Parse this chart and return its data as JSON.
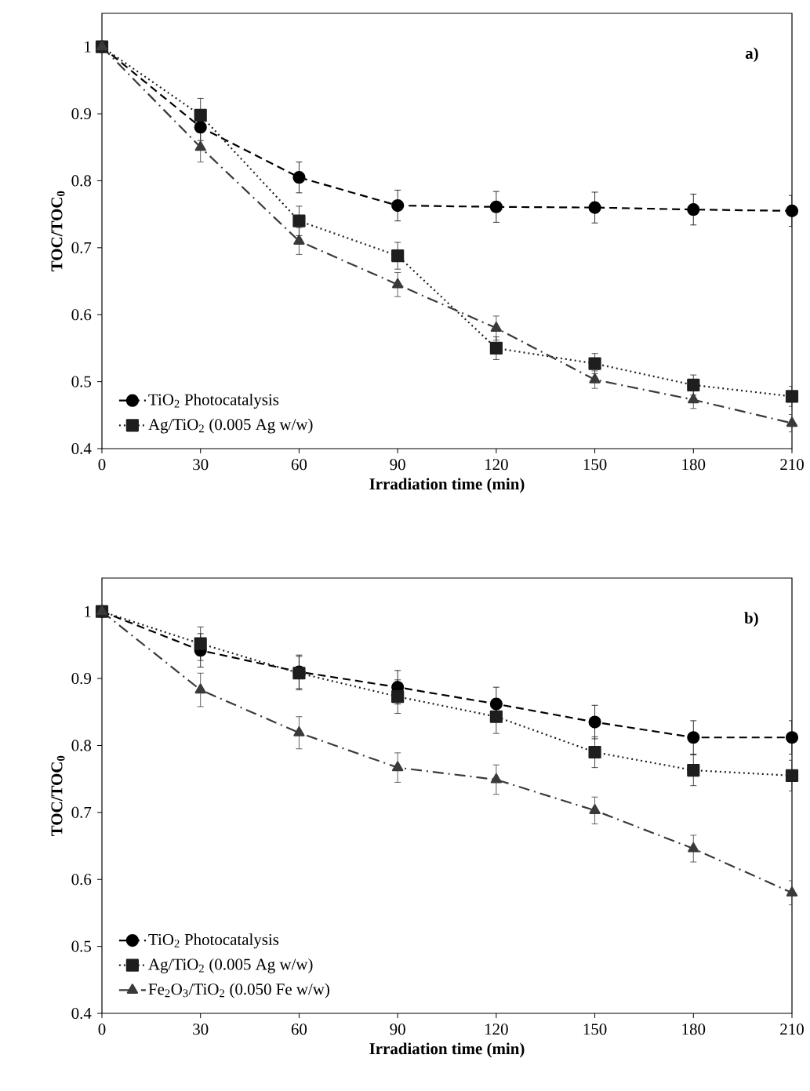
{
  "chart_data": [
    {
      "type": "line",
      "title": "**a)**",
      "xlabel": "**Irradiation time (min)**",
      "ylabel": "**TOC/TOC$_{0}$**",
      "x": [
        0,
        30,
        60,
        90,
        120,
        150,
        180,
        210
      ],
      "series": [
        {
          "name": "TiO$_{2}$ Photocatalysis",
          "color": "#000000",
          "marker": "circle",
          "line_style": "dashed",
          "values": [
            1.0,
            0.88,
            0.805,
            0.763,
            0.761,
            0.76,
            0.757,
            0.755
          ],
          "errors": [
            null,
            0.02,
            0.023,
            0.023,
            0.023,
            0.023,
            0.023,
            0.023
          ]
        },
        {
          "name": "Ag/TiO$_{2}$ (0.005 Ag w/w)",
          "color": "#1e1e1e",
          "marker": "square",
          "line_style": "dotted",
          "values": [
            1.0,
            0.898,
            0.74,
            0.688,
            0.55,
            0.527,
            0.495,
            0.478
          ],
          "errors": [
            null,
            0.025,
            0.022,
            0.02,
            0.017,
            0.015,
            0.015,
            0.015
          ]
        },
        {
          "color": "#3a3a3a",
          "marker": "triangle",
          "line_style": "dashdot",
          "values": [
            1.0,
            0.85,
            0.71,
            0.645,
            0.58,
            0.503,
            0.473,
            0.438
          ],
          "errors": [
            null,
            0.022,
            0.02,
            0.018,
            0.018,
            0.013,
            0.013,
            0.013
          ]
        }
      ],
      "xlim": [
        0,
        210
      ],
      "ylim": [
        0.4,
        1.05
      ],
      "xticks": [
        0,
        30,
        60,
        90,
        120,
        150,
        180,
        210
      ],
      "yticks": [
        0.4,
        0.5,
        0.6,
        0.7,
        0.8,
        0.9,
        1
      ],
      "legend": "bottom left"
    },
    {
      "type": "line",
      "title": "**b)**",
      "xlabel": "**Irradiation time (min)**",
      "ylabel": "**TOC/TOC$_{0}$**",
      "x": [
        0,
        30,
        60,
        90,
        120,
        150,
        180,
        210
      ],
      "series": [
        {
          "name": "TiO$_{2}$ Photocatalysis",
          "color": "#000000",
          "marker": "circle",
          "line_style": "dashed",
          "values": [
            1.0,
            0.942,
            0.91,
            0.887,
            0.862,
            0.835,
            0.812,
            0.812
          ],
          "errors": [
            null,
            0.025,
            0.025,
            0.025,
            0.025,
            0.025,
            0.025,
            0.025
          ]
        },
        {
          "name": "Ag/TiO$_{2}$ (0.005 Ag w/w)",
          "color": "#1e1e1e",
          "marker": "square",
          "line_style": "dotted",
          "values": [
            1.0,
            0.952,
            0.908,
            0.873,
            0.843,
            0.79,
            0.763,
            0.755
          ],
          "errors": [
            null,
            0.025,
            0.025,
            0.025,
            0.025,
            0.023,
            0.023,
            0.023
          ]
        },
        {
          "name": "Fe$_{2}$O$_{3}$/TiO$_{2}$ (0.050 Fe w/w)",
          "color": "#3a3a3a",
          "marker": "triangle",
          "line_style": "dashdot",
          "values": [
            1.0,
            0.883,
            0.819,
            0.767,
            0.749,
            0.703,
            0.646,
            0.58
          ],
          "errors": [
            null,
            0.025,
            0.024,
            0.022,
            0.022,
            0.02,
            0.02,
            0.018
          ]
        }
      ],
      "xlim": [
        0,
        210
      ],
      "ylim": [
        0.4,
        1.05
      ],
      "xticks": [
        0,
        30,
        60,
        90,
        120,
        150,
        180,
        210
      ],
      "yticks": [
        0.4,
        0.5,
        0.6,
        0.7,
        0.8,
        0.9,
        1
      ],
      "legend": "bottom left"
    }
  ]
}
